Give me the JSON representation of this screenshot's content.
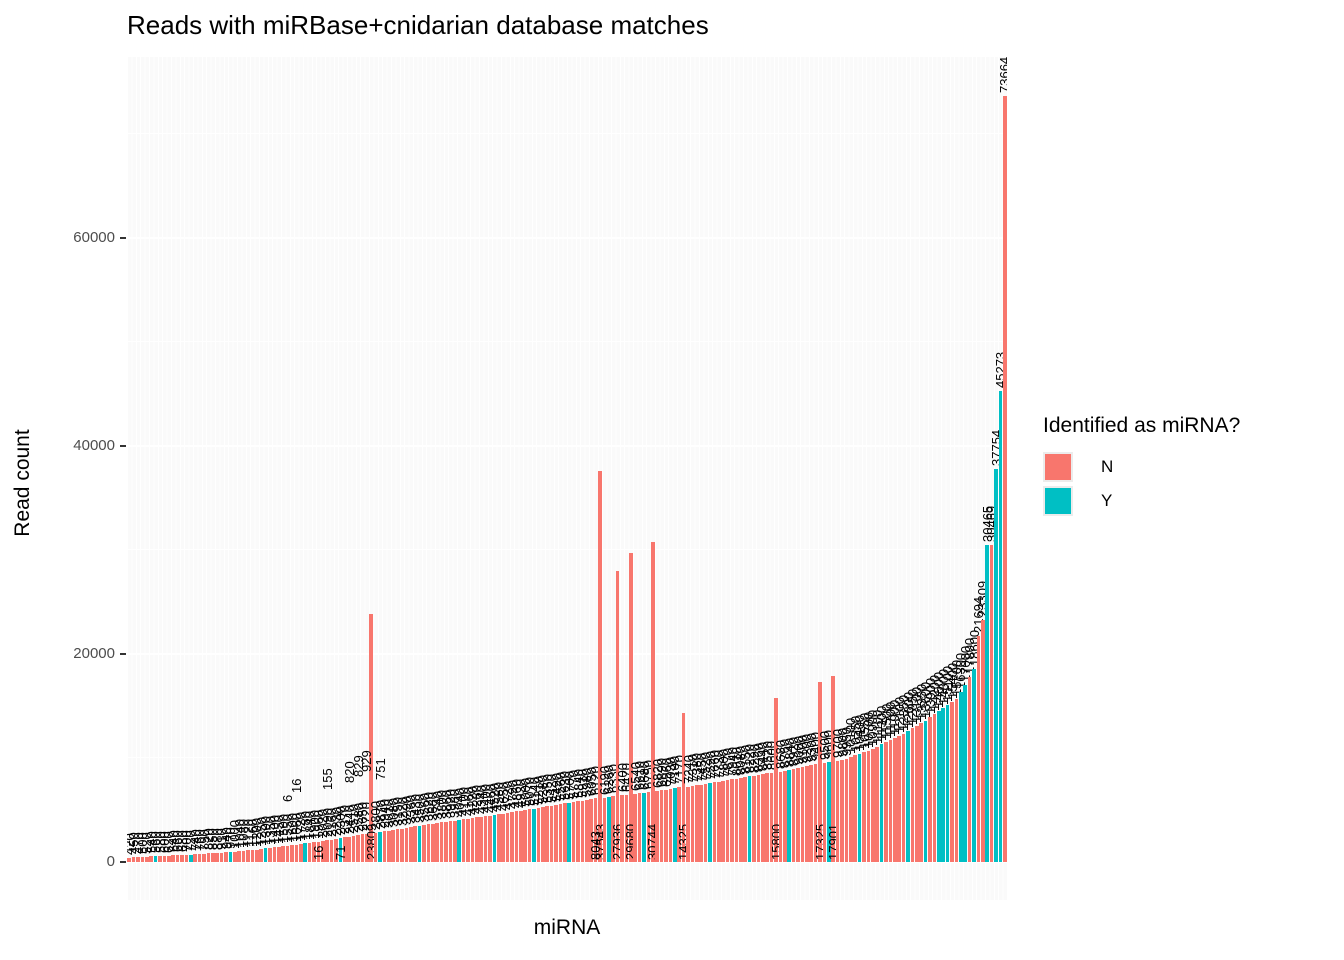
{
  "chart_data": {
    "type": "bar",
    "title": "Reads with miRBase+cnidarian database matches",
    "xlabel": "miRNA",
    "ylabel": "Read count",
    "legend": {
      "title": "Identified as miRNA?",
      "entries": [
        {
          "label": "N",
          "color": "#F8766D"
        },
        {
          "label": "Y",
          "color": "#00BFC4"
        }
      ]
    },
    "colors": {
      "N": "#F8766D",
      "Y": "#00BFC4"
    },
    "panel_bg": "#FAFAFA",
    "axis": {
      "yticks": [
        0,
        20000,
        40000,
        60000
      ],
      "yminor": [
        10000,
        30000,
        50000,
        70000
      ],
      "ylim": [
        0,
        77347
      ],
      "x_tick_labels_shown": false
    },
    "bar_label_style": "count value rotated 90deg above each bar; spike bars labeled at base",
    "stray_labels": [
      {
        "i": 36,
        "t": "6",
        "mode": "top",
        "o": 44
      },
      {
        "i": 38,
        "t": "16",
        "mode": "top",
        "o": 52
      },
      {
        "i": 45,
        "t": "155",
        "mode": "top",
        "o": 50
      },
      {
        "i": 50,
        "t": "820",
        "mode": "top",
        "o": 54
      },
      {
        "i": 52,
        "t": "829",
        "mode": "top",
        "o": 58
      },
      {
        "i": 54,
        "t": "929",
        "mode": "top",
        "o": 62
      },
      {
        "i": 57,
        "t": "751",
        "mode": "top",
        "o": 52
      },
      {
        "i": 43,
        "t": "16",
        "mode": "base",
        "o": 2
      },
      {
        "i": 48,
        "t": "71",
        "mode": "base",
        "o": 2
      },
      {
        "i": 106,
        "t": "8043",
        "mode": "base",
        "o": 2
      }
    ],
    "bars": [
      [
        420,
        "N"
      ],
      [
        450,
        "N"
      ],
      [
        470,
        "N"
      ],
      [
        500,
        "N"
      ],
      [
        520,
        "N"
      ],
      [
        540,
        "N"
      ],
      [
        560,
        "Y"
      ],
      [
        580,
        "N"
      ],
      [
        600,
        "N"
      ],
      [
        620,
        "N"
      ],
      [
        640,
        "N"
      ],
      [
        660,
        "N"
      ],
      [
        680,
        "N"
      ],
      [
        700,
        "N"
      ],
      [
        720,
        "Y"
      ],
      [
        740,
        "N"
      ],
      [
        760,
        "N"
      ],
      [
        790,
        "N"
      ],
      [
        820,
        "N"
      ],
      [
        850,
        "N"
      ],
      [
        880,
        "N"
      ],
      [
        910,
        "N"
      ],
      [
        940,
        "N"
      ],
      [
        970,
        "Y"
      ],
      [
        1000,
        "N"
      ],
      [
        1040,
        "N"
      ],
      [
        1080,
        "N"
      ],
      [
        1120,
        "N"
      ],
      [
        1160,
        "N"
      ],
      [
        1200,
        "N"
      ],
      [
        1250,
        "N"
      ],
      [
        1300,
        "Y"
      ],
      [
        1350,
        "N"
      ],
      [
        1400,
        "N"
      ],
      [
        1450,
        "N"
      ],
      [
        1500,
        "N"
      ],
      [
        1550,
        "N"
      ],
      [
        1600,
        "N"
      ],
      [
        1660,
        "N"
      ],
      [
        1720,
        "N"
      ],
      [
        1780,
        "Y"
      ],
      [
        1840,
        "N"
      ],
      [
        1900,
        "N"
      ],
      [
        1960,
        "N"
      ],
      [
        2020,
        "N"
      ],
      [
        2090,
        "N"
      ],
      [
        2160,
        "N"
      ],
      [
        2230,
        "N"
      ],
      [
        2300,
        "Y"
      ],
      [
        2370,
        "N"
      ],
      [
        2440,
        "N"
      ],
      [
        2510,
        "N"
      ],
      [
        2580,
        "N"
      ],
      [
        2650,
        "N"
      ],
      [
        2720,
        "N"
      ],
      [
        23809,
        "N",
        1
      ],
      [
        2800,
        "N"
      ],
      [
        2870,
        "Y"
      ],
      [
        2940,
        "N"
      ],
      [
        3010,
        "N"
      ],
      [
        3080,
        "N"
      ],
      [
        3150,
        "N"
      ],
      [
        3220,
        "N"
      ],
      [
        3290,
        "N"
      ],
      [
        3360,
        "N"
      ],
      [
        3430,
        "N"
      ],
      [
        3500,
        "Y"
      ],
      [
        3560,
        "N"
      ],
      [
        3620,
        "N"
      ],
      [
        3680,
        "N"
      ],
      [
        3740,
        "N"
      ],
      [
        3800,
        "N"
      ],
      [
        3860,
        "N"
      ],
      [
        3920,
        "N"
      ],
      [
        3980,
        "N"
      ],
      [
        4040,
        "Y"
      ],
      [
        4100,
        "N"
      ],
      [
        4160,
        "N"
      ],
      [
        4220,
        "N"
      ],
      [
        4280,
        "N"
      ],
      [
        4340,
        "N"
      ],
      [
        4400,
        "N"
      ],
      [
        4460,
        "N"
      ],
      [
        4520,
        "Y"
      ],
      [
        4580,
        "N"
      ],
      [
        4650,
        "N"
      ],
      [
        4720,
        "N"
      ],
      [
        4790,
        "N"
      ],
      [
        4860,
        "N"
      ],
      [
        4930,
        "N"
      ],
      [
        5000,
        "N"
      ],
      [
        5070,
        "N"
      ],
      [
        5140,
        "Y"
      ],
      [
        5210,
        "N"
      ],
      [
        5280,
        "N"
      ],
      [
        5350,
        "N"
      ],
      [
        5420,
        "N"
      ],
      [
        5490,
        "N"
      ],
      [
        5560,
        "N"
      ],
      [
        5630,
        "N"
      ],
      [
        5700,
        "Y"
      ],
      [
        5770,
        "N"
      ],
      [
        5840,
        "N"
      ],
      [
        5910,
        "N"
      ],
      [
        5980,
        "N"
      ],
      [
        6050,
        "N"
      ],
      [
        6120,
        "N"
      ],
      [
        37543,
        "N",
        1
      ],
      [
        6190,
        "N"
      ],
      [
        6260,
        "Y"
      ],
      [
        6330,
        "N"
      ],
      [
        27936,
        "N",
        1
      ],
      [
        6400,
        "N"
      ],
      [
        6470,
        "N"
      ],
      [
        29680,
        "N",
        1
      ],
      [
        6540,
        "N"
      ],
      [
        6610,
        "N"
      ],
      [
        6680,
        "Y"
      ],
      [
        6750,
        "N"
      ],
      [
        30744,
        "N",
        1
      ],
      [
        6820,
        "N"
      ],
      [
        6890,
        "N"
      ],
      [
        6960,
        "N"
      ],
      [
        7030,
        "N"
      ],
      [
        7100,
        "Y"
      ],
      [
        7170,
        "N"
      ],
      [
        14325,
        "N",
        1
      ],
      [
        7240,
        "N"
      ],
      [
        7310,
        "N"
      ],
      [
        7380,
        "N"
      ],
      [
        7450,
        "N"
      ],
      [
        7520,
        "N"
      ],
      [
        7590,
        "Y"
      ],
      [
        7660,
        "N"
      ],
      [
        7730,
        "N"
      ],
      [
        7800,
        "N"
      ],
      [
        7870,
        "N"
      ],
      [
        7940,
        "N"
      ],
      [
        8010,
        "N"
      ],
      [
        8080,
        "N"
      ],
      [
        8150,
        "N"
      ],
      [
        8220,
        "Y"
      ],
      [
        8290,
        "N"
      ],
      [
        8360,
        "N"
      ],
      [
        8440,
        "N"
      ],
      [
        8520,
        "N"
      ],
      [
        8600,
        "N"
      ],
      [
        15800,
        "N",
        1
      ],
      [
        8680,
        "N"
      ],
      [
        8760,
        "N"
      ],
      [
        8840,
        "Y"
      ],
      [
        8920,
        "N"
      ],
      [
        9000,
        "N"
      ],
      [
        9100,
        "N"
      ],
      [
        9200,
        "N"
      ],
      [
        9300,
        "N"
      ],
      [
        9400,
        "N"
      ],
      [
        17325,
        "N",
        1
      ],
      [
        9500,
        "N"
      ],
      [
        9600,
        "Y"
      ],
      [
        17901,
        "N",
        1
      ],
      [
        9700,
        "N"
      ],
      [
        9800,
        "N"
      ],
      [
        9950,
        "N"
      ],
      [
        10100,
        "N"
      ],
      [
        10250,
        "N"
      ],
      [
        10400,
        "Y"
      ],
      [
        10550,
        "N"
      ],
      [
        10700,
        "N"
      ],
      [
        10900,
        "N"
      ],
      [
        11100,
        "N"
      ],
      [
        11300,
        "Y"
      ],
      [
        11500,
        "N"
      ],
      [
        11700,
        "N"
      ],
      [
        11900,
        "N"
      ],
      [
        12100,
        "N"
      ],
      [
        12350,
        "N"
      ],
      [
        12600,
        "Y"
      ],
      [
        12850,
        "N"
      ],
      [
        13100,
        "N"
      ],
      [
        13350,
        "N"
      ],
      [
        13600,
        "Y"
      ],
      [
        13900,
        "N"
      ],
      [
        14200,
        "N"
      ],
      [
        14500,
        "Y"
      ],
      [
        14800,
        "Y"
      ],
      [
        15100,
        "Y"
      ],
      [
        15400,
        "N"
      ],
      [
        15700,
        "N"
      ],
      [
        16300,
        "Y"
      ],
      [
        17000,
        "Y"
      ],
      [
        17800,
        "N"
      ],
      [
        18600,
        "Y"
      ],
      [
        21694,
        "N"
      ],
      [
        23309,
        "N"
      ],
      [
        30465,
        "Y"
      ],
      [
        30469,
        "N"
      ],
      [
        37754,
        "Y"
      ],
      [
        45273,
        "Y"
      ],
      [
        73664,
        "N"
      ]
    ]
  }
}
